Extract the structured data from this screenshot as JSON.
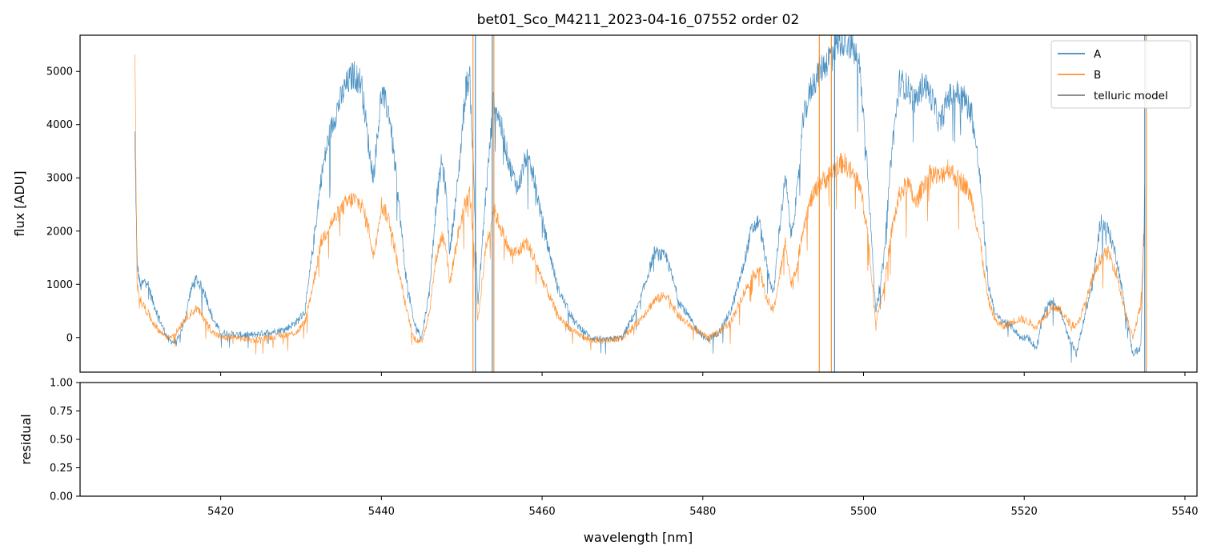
{
  "chart_data": [
    {
      "panel": "top",
      "type": "line",
      "title": "bet01_Sco_M4211_2023-04-16_07552  order 02",
      "xlabel": "",
      "ylabel": "flux [ADU]",
      "xlim": [
        5402.5,
        5541.5
      ],
      "ylim": [
        -650,
        5680
      ],
      "yticks": [
        0,
        1000,
        2000,
        3000,
        4000,
        5000
      ],
      "xticks": [
        5420,
        5440,
        5460,
        5480,
        5500,
        5520,
        5540
      ],
      "x_tick_labels_visible": false,
      "legend": {
        "placement": "top-right",
        "entries": [
          "A",
          "B",
          "telluric model"
        ]
      },
      "series": [
        {
          "name": "A",
          "color": "#1f77b4",
          "x": [
            5409.3,
            5409.6,
            5410.0,
            5410.8,
            5411.5,
            5412.5,
            5413.5,
            5414.5,
            5415.5,
            5416.3,
            5417.0,
            5418.0,
            5419.0,
            5420.0,
            5422.0,
            5424.0,
            5426.0,
            5428.0,
            5429.5,
            5430.5,
            5431.5,
            5432.5,
            5433.5,
            5434.5,
            5435.5,
            5436.5,
            5437.5,
            5438.5,
            5439.0,
            5440.0,
            5441.0,
            5442.0,
            5443.0,
            5444.0,
            5445.0,
            5446.0,
            5446.8,
            5447.5,
            5448.0,
            5448.5,
            5449.5,
            5450.5,
            5451.0,
            5451.5,
            5452.0,
            5453.0,
            5454.0,
            5455.0,
            5456.0,
            5457.0,
            5458.0,
            5459.0,
            5460.0,
            5462.0,
            5464.0,
            5466.0,
            5468.0,
            5470.0,
            5472.0,
            5474.0,
            5475.5,
            5477.0,
            5479.0,
            5480.5,
            5482.0,
            5483.5,
            5485.0,
            5486.0,
            5487.0,
            5488.0,
            5488.8,
            5489.5,
            5490.3,
            5491.0,
            5491.8,
            5492.5,
            5493.5,
            5494.5,
            5495.5,
            5496.5,
            5497.5,
            5498.5,
            5499.5,
            5500.5,
            5501.5,
            5502.5,
            5503.5,
            5504.5,
            5505.5,
            5506.5,
            5507.5,
            5508.5,
            5509.5,
            5510.5,
            5511.5,
            5512.5,
            5513.5,
            5514.5,
            5515.5,
            5516.5,
            5517.5,
            5518.5,
            5519.5,
            5520.5,
            5521.5,
            5522.5,
            5523.5,
            5524.5,
            5525.5,
            5526.5,
            5527.5,
            5528.5,
            5529.5,
            5530.5,
            5531.5,
            5532.5,
            5533.5,
            5534.5,
            5535.0
          ],
          "values": [
            3800,
            1400,
            950,
            1100,
            700,
            300,
            -50,
            -100,
            300,
            900,
            1100,
            850,
            350,
            100,
            50,
            50,
            100,
            150,
            300,
            500,
            1700,
            3000,
            3800,
            4300,
            4700,
            4950,
            4800,
            3500,
            3000,
            4600,
            4200,
            2800,
            1200,
            300,
            0,
            900,
            2500,
            3300,
            2800,
            1600,
            2900,
            4700,
            4900,
            3000,
            600,
            2700,
            4500,
            3900,
            3200,
            2800,
            3400,
            3000,
            2200,
            900,
            300,
            0,
            -50,
            0,
            600,
            1600,
            1500,
            700,
            200,
            -50,
            100,
            500,
            1300,
            2000,
            2200,
            1300,
            800,
            2000,
            3000,
            1900,
            2800,
            4100,
            4700,
            5000,
            5200,
            5500,
            5600,
            5500,
            5100,
            3200,
            500,
            1400,
            3500,
            4800,
            4700,
            4400,
            4800,
            4500,
            4000,
            4500,
            4600,
            4500,
            4200,
            3000,
            1000,
            400,
            300,
            200,
            0,
            0,
            -200,
            500,
            700,
            500,
            0,
            -300,
            400,
            1000,
            2200,
            2000,
            1500,
            600,
            -300,
            -200,
            2700
          ]
        },
        {
          "name": "B",
          "color": "#ff7f0e",
          "x": [
            5409.3,
            5409.6,
            5410.0,
            5410.8,
            5411.5,
            5412.5,
            5413.5,
            5414.5,
            5415.5,
            5416.3,
            5417.0,
            5418.0,
            5419.0,
            5420.0,
            5422.0,
            5424.0,
            5426.0,
            5428.0,
            5429.5,
            5430.5,
            5431.5,
            5432.5,
            5433.5,
            5434.5,
            5435.5,
            5436.5,
            5437.5,
            5438.5,
            5439.0,
            5440.0,
            5441.0,
            5442.0,
            5443.0,
            5444.0,
            5445.0,
            5446.0,
            5446.8,
            5447.5,
            5448.0,
            5448.5,
            5449.5,
            5450.5,
            5451.0,
            5451.5,
            5452.0,
            5453.0,
            5454.0,
            5455.0,
            5456.0,
            5457.0,
            5458.0,
            5459.0,
            5460.0,
            5462.0,
            5464.0,
            5466.0,
            5468.0,
            5470.0,
            5472.0,
            5474.0,
            5475.5,
            5477.0,
            5479.0,
            5480.5,
            5482.0,
            5483.5,
            5485.0,
            5486.0,
            5487.0,
            5488.0,
            5488.8,
            5489.5,
            5490.3,
            5491.0,
            5491.8,
            5492.5,
            5493.5,
            5494.5,
            5495.5,
            5496.5,
            5497.5,
            5498.5,
            5499.5,
            5500.5,
            5501.5,
            5502.5,
            5503.5,
            5504.5,
            5505.5,
            5506.5,
            5507.5,
            5508.5,
            5509.5,
            5510.5,
            5511.5,
            5512.5,
            5513.5,
            5514.5,
            5515.5,
            5516.5,
            5517.5,
            5518.5,
            5519.5,
            5520.5,
            5521.5,
            5522.5,
            5523.5,
            5524.5,
            5525.5,
            5526.5,
            5527.5,
            5528.5,
            5529.5,
            5530.5,
            5531.5,
            5532.5,
            5533.5,
            5534.5,
            5535.0
          ],
          "values": [
            5600,
            1000,
            700,
            500,
            300,
            100,
            0,
            100,
            350,
            450,
            550,
            350,
            100,
            0,
            0,
            -50,
            0,
            50,
            100,
            300,
            1000,
            1800,
            2100,
            2300,
            2500,
            2600,
            2500,
            2000,
            1500,
            2500,
            2200,
            1400,
            600,
            0,
            -100,
            500,
            1500,
            1900,
            1800,
            1000,
            1900,
            2600,
            2700,
            1800,
            300,
            1700,
            2400,
            2000,
            1600,
            1600,
            1800,
            1500,
            1100,
            400,
            100,
            -50,
            -50,
            0,
            300,
            700,
            800,
            400,
            150,
            0,
            100,
            300,
            800,
            1100,
            1300,
            700,
            500,
            1100,
            1800,
            1000,
            1400,
            2100,
            2600,
            2900,
            3000,
            3200,
            3300,
            3100,
            2900,
            2000,
            300,
            900,
            2000,
            2700,
            2900,
            2500,
            2900,
            3100,
            3000,
            3200,
            3000,
            2900,
            2600,
            1800,
            700,
            300,
            200,
            300,
            350,
            300,
            200,
            400,
            600,
            500,
            300,
            200,
            600,
            1100,
            1500,
            1600,
            1200,
            500,
            0,
            600,
            2200
          ]
        },
        {
          "name": "telluric model",
          "color": "#6b6b6b",
          "x": [],
          "values": []
        }
      ],
      "spikes": [
        {
          "series": "A",
          "x": 5451.7
        },
        {
          "series": "A",
          "x": 5453.8
        },
        {
          "series": "A",
          "x": 5496.4
        },
        {
          "series": "A",
          "x": 5535.0
        },
        {
          "series": "B",
          "x": 5451.4
        },
        {
          "series": "B",
          "x": 5454.0
        },
        {
          "series": "B",
          "x": 5494.5
        },
        {
          "series": "B",
          "x": 5496.0
        },
        {
          "series": "B",
          "x": 5535.2
        }
      ]
    },
    {
      "panel": "bottom",
      "type": "line",
      "title": "",
      "xlabel": "wavelength [nm]",
      "ylabel": "residual",
      "xlim": [
        5402.5,
        5541.5
      ],
      "ylim": [
        0,
        1
      ],
      "yticks": [
        0.0,
        0.25,
        0.5,
        0.75,
        1.0
      ],
      "ytick_labels": [
        "0.00",
        "0.25",
        "0.50",
        "0.75",
        "1.00"
      ],
      "xticks": [
        5420,
        5440,
        5460,
        5480,
        5500,
        5520,
        5540
      ],
      "xtick_labels": [
        "5420",
        "5440",
        "5460",
        "5480",
        "5500",
        "5520",
        "5540"
      ],
      "series": []
    }
  ]
}
